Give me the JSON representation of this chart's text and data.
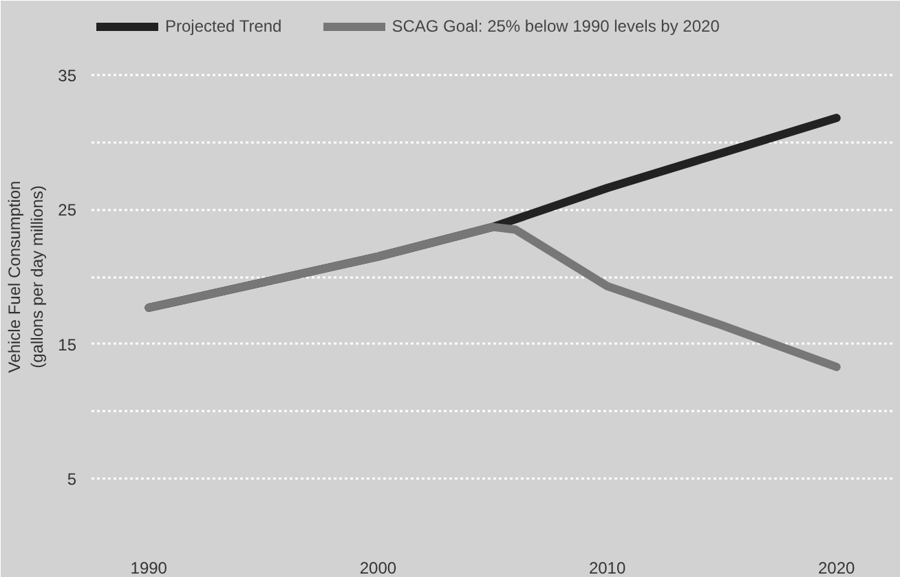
{
  "chart_data": {
    "type": "line",
    "ylabel": "Vehicle Fuel Consumption\n(gallons per day millions)",
    "xlim": [
      1987.5,
      2022.5
    ],
    "xticks": [
      1990,
      2000,
      2010,
      2020
    ],
    "ylim": [
      0,
      40
    ],
    "yticks": [
      {
        "value": 0,
        "label": null
      },
      5,
      {
        "value": 10,
        "label": null
      },
      15,
      {
        "value": 20,
        "label": null
      },
      25,
      {
        "value": 30,
        "label": null
      },
      35
    ],
    "grid": "y",
    "legend": "top left",
    "marker": "none",
    "line_style": "solid",
    "series": [
      {
        "name": "Projected Trend",
        "color": "#222222",
        "x": [
          1990,
          1995,
          2000,
          2005,
          2010,
          2015,
          2020
        ],
        "values": [
          17.7,
          19.6,
          21.5,
          23.7,
          26.6,
          29.2,
          31.8
        ]
      },
      {
        "name": "SCAG Goal: 25% below 1990 levels by 2020",
        "color": "#777777",
        "x": [
          1990,
          1995,
          2000,
          2005,
          2006,
          2010,
          2015,
          2020
        ],
        "values": [
          17.7,
          19.6,
          21.5,
          23.7,
          23.5,
          19.3,
          16.4,
          13.3
        ]
      }
    ]
  }
}
